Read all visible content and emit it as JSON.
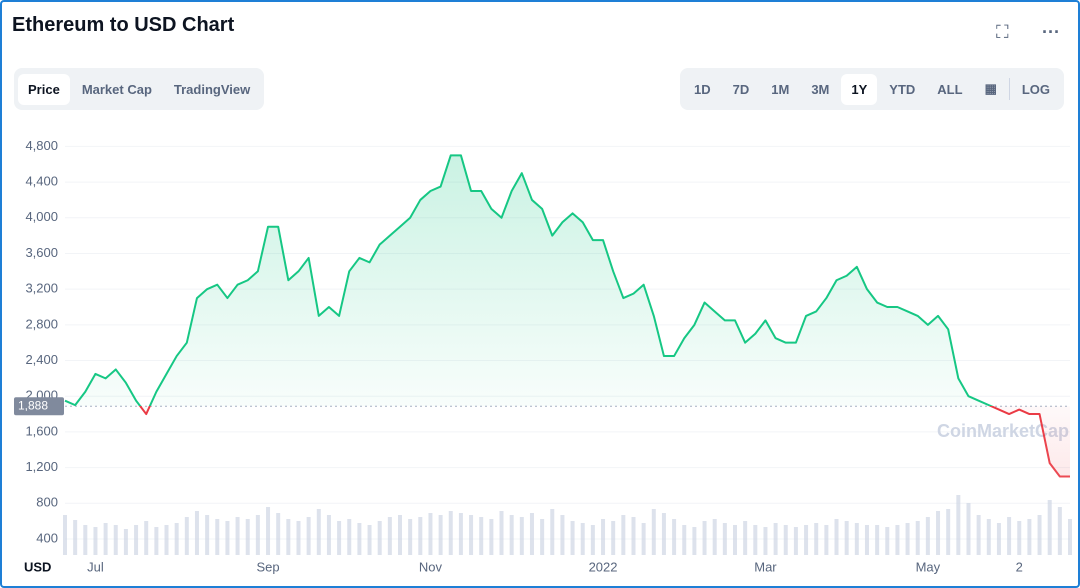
{
  "chart_data": {
    "type": "line",
    "title": "Ethereum to USD Chart",
    "tabs": [
      "Price",
      "Market Cap",
      "TradingView"
    ],
    "ranges": [
      "1D",
      "7D",
      "1M",
      "3M",
      "1Y",
      "YTD",
      "ALL"
    ],
    "log_button": "LOG",
    "currency": "USD",
    "watermark": "CoinMarketCap",
    "baseline": {
      "value": 1888,
      "label": "1,888"
    },
    "categories": [
      null,
      null,
      null,
      "Jul",
      null,
      null,
      null,
      null,
      null,
      null,
      null,
      null,
      null,
      null,
      null,
      null,
      null,
      null,
      null,
      null,
      "Sep",
      null,
      null,
      null,
      null,
      null,
      null,
      null,
      null,
      null,
      null,
      null,
      null,
      null,
      null,
      null,
      "Nov",
      null,
      null,
      null,
      null,
      null,
      null,
      null,
      null,
      null,
      null,
      null,
      null,
      null,
      null,
      null,
      null,
      "2022",
      null,
      null,
      null,
      null,
      null,
      null,
      null,
      null,
      null,
      null,
      null,
      null,
      null,
      null,
      null,
      "Mar",
      null,
      null,
      null,
      null,
      null,
      null,
      null,
      null,
      null,
      null,
      null,
      null,
      null,
      null,
      null,
      "May",
      null,
      null,
      null,
      null,
      null,
      null,
      null,
      null,
      "2",
      null,
      null,
      null,
      null,
      null
    ],
    "series": [
      {
        "name": "Price",
        "color": "#16c784",
        "color_below": "#ea3943",
        "values": [
          1950,
          1900,
          2050,
          2250,
          2200,
          2300,
          2150,
          1950,
          1800,
          2050,
          2250,
          2450,
          2600,
          3100,
          3200,
          3250,
          3100,
          3250,
          3300,
          3400,
          3900,
          3900,
          3300,
          3400,
          3550,
          2900,
          3000,
          2900,
          3400,
          3550,
          3500,
          3700,
          3800,
          3900,
          4000,
          4200,
          4300,
          4350,
          4700,
          4700,
          4300,
          4300,
          4100,
          4000,
          4300,
          4500,
          4200,
          4100,
          3800,
          3950,
          4050,
          3950,
          3750,
          3750,
          3400,
          3100,
          3150,
          3250,
          2900,
          2450,
          2450,
          2650,
          2800,
          3050,
          2950,
          2850,
          2850,
          2600,
          2700,
          2850,
          2650,
          2600,
          2600,
          2900,
          2950,
          3100,
          3300,
          3350,
          3450,
          3200,
          3050,
          3000,
          3000,
          2950,
          2900,
          2800,
          2900,
          2750,
          2200,
          2000,
          1950,
          1900,
          1850,
          1800,
          1850,
          1800,
          1800,
          1250,
          1100,
          1100
        ]
      }
    ],
    "volume": {
      "color": "#cfd6e4",
      "values": [
        40,
        35,
        30,
        28,
        32,
        30,
        26,
        30,
        34,
        28,
        30,
        32,
        38,
        44,
        40,
        36,
        34,
        38,
        36,
        40,
        48,
        42,
        36,
        34,
        38,
        46,
        40,
        34,
        36,
        32,
        30,
        34,
        38,
        40,
        36,
        38,
        42,
        40,
        44,
        42,
        40,
        38,
        36,
        44,
        40,
        38,
        42,
        36,
        46,
        40,
        34,
        32,
        30,
        36,
        34,
        40,
        38,
        32,
        46,
        42,
        36,
        30,
        28,
        34,
        36,
        32,
        30,
        34,
        30,
        28,
        32,
        30,
        28,
        30,
        32,
        30,
        36,
        34,
        32,
        30,
        30,
        28,
        30,
        32,
        34,
        38,
        44,
        46,
        60,
        52,
        40,
        36,
        32,
        38,
        34,
        36,
        40,
        55,
        48,
        36
      ]
    },
    "ylim": [
      220,
      5040
    ],
    "yticks": [
      400,
      800,
      {
        "value": 1200,
        "label": "1,200"
      },
      {
        "value": 1600,
        "label": "1,600"
      },
      {
        "value": 2000,
        "label": "2,000"
      },
      {
        "value": 2400,
        "label": "2,400"
      },
      {
        "value": 2800,
        "label": "2,800"
      },
      {
        "value": 3200,
        "label": "3,200"
      },
      {
        "value": 3600,
        "label": "3,600"
      },
      {
        "value": 4000,
        "label": "4,000"
      },
      {
        "value": 4400,
        "label": "4,400"
      },
      {
        "value": 4800,
        "label": "4,800"
      }
    ],
    "grid": true
  }
}
